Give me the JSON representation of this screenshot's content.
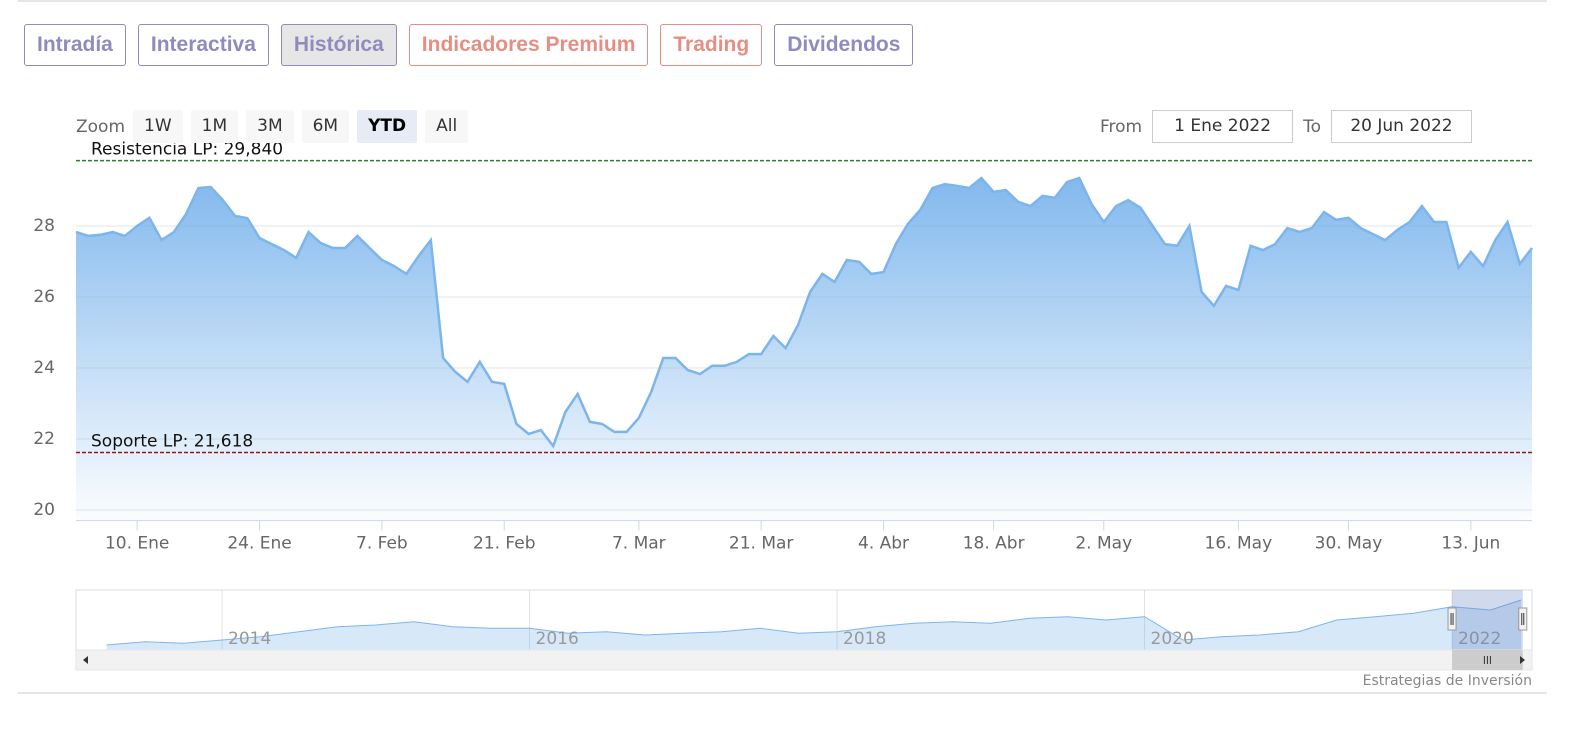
{
  "tabs": [
    {
      "label": "Intradía",
      "color": "#8f8bbd"
    },
    {
      "label": "Interactiva",
      "color": "#8f8bbd"
    },
    {
      "label": "Histórica",
      "color": "#8f8bbd",
      "active": true
    },
    {
      "label": "Indicadores Premium",
      "color": "#e58f84"
    },
    {
      "label": "Trading",
      "color": "#e58f84"
    },
    {
      "label": "Dividendos",
      "color": "#8f8bbd"
    }
  ],
  "zoom": {
    "label": "Zoom",
    "buttons": [
      "1W",
      "1M",
      "3M",
      "6M",
      "YTD",
      "All"
    ],
    "selected": "YTD"
  },
  "range": {
    "from_label": "From",
    "from": "1 Ene 2022",
    "to_label": "To",
    "to": "20 Jun 2022"
  },
  "credit": "Estrategias de Inversión",
  "chart_data": [
    {
      "type": "area",
      "color": "#7cb5ec",
      "grid": true,
      "categories": [
        null,
        null,
        null,
        null,
        null,
        "10. Ene",
        null,
        null,
        null,
        null,
        null,
        null,
        null,
        null,
        null,
        "24. Ene",
        null,
        null,
        null,
        null,
        null,
        null,
        null,
        null,
        null,
        "7. Feb",
        null,
        null,
        null,
        null,
        null,
        null,
        null,
        null,
        null,
        "21. Feb",
        null,
        null,
        null,
        null,
        null,
        null,
        null,
        null,
        null,
        null,
        "7. Mar",
        null,
        null,
        null,
        null,
        null,
        null,
        null,
        null,
        null,
        "21. Mar",
        null,
        null,
        null,
        null,
        null,
        null,
        null,
        null,
        null,
        "4. Abr",
        null,
        null,
        null,
        null,
        null,
        null,
        null,
        null,
        "18. Abr",
        null,
        null,
        null,
        null,
        null,
        null,
        null,
        null,
        "2. May",
        null,
        null,
        null,
        null,
        null,
        null,
        null,
        null,
        null,
        null,
        "16. May",
        null,
        null,
        null,
        null,
        null,
        null,
        null,
        null,
        "30. May",
        null,
        null,
        null,
        null,
        null,
        null,
        null,
        null,
        null,
        "13. Jun",
        null,
        null,
        null,
        null,
        null
      ],
      "values": [
        27.83,
        27.72,
        27.75,
        27.83,
        27.72,
        28.0,
        28.23,
        27.6,
        27.83,
        28.34,
        29.07,
        29.1,
        28.73,
        28.28,
        28.22,
        27.66,
        27.49,
        27.32,
        27.1,
        27.83,
        27.52,
        27.38,
        27.38,
        27.72,
        27.38,
        27.04,
        26.87,
        26.65,
        27.15,
        27.6,
        24.28,
        23.89,
        23.61,
        24.17,
        23.61,
        23.55,
        22.42,
        22.14,
        22.25,
        21.8,
        22.76,
        23.27,
        22.48,
        22.42,
        22.2,
        22.2,
        22.59,
        23.32,
        24.28,
        24.28,
        23.94,
        23.83,
        24.06,
        24.06,
        24.17,
        24.39,
        24.39,
        24.9,
        24.56,
        25.2,
        26.14,
        26.65,
        26.42,
        27.04,
        26.99,
        26.65,
        26.7,
        27.49,
        28.06,
        28.45,
        29.07,
        29.18,
        29.13,
        29.07,
        29.35,
        28.96,
        29.01,
        28.68,
        28.56,
        28.85,
        28.79,
        29.24,
        29.35,
        28.62,
        28.11,
        28.56,
        28.73,
        28.51,
        28.0,
        27.49,
        27.44,
        28.0,
        26.14,
        25.75,
        26.31,
        26.2,
        27.44,
        27.32,
        27.49,
        27.94,
        27.83,
        27.94,
        28.39,
        28.17,
        28.23,
        27.94,
        27.77,
        27.6,
        27.89,
        28.11,
        28.56,
        28.11,
        28.11,
        26.82,
        27.27,
        26.87,
        27.6,
        28.11,
        26.93,
        27.38
      ],
      "ylim": [
        19.7,
        29.9
      ],
      "yticks": [
        20,
        22,
        24,
        26,
        28
      ],
      "plot_lines": [
        {
          "label": "Resistencia LP: 29,840",
          "value": 29.84,
          "color": "#2e7d32"
        },
        {
          "label": "Soporte LP: 21,618",
          "value": 21.618,
          "color": "#8b1a1a"
        }
      ]
    },
    {
      "type": "navigator",
      "color": "#7cb5ec",
      "x": [
        2013.25,
        2013.5,
        2013.75,
        2014,
        2014.25,
        2014.5,
        2014.75,
        2015,
        2015.25,
        2015.5,
        2015.75,
        2016,
        2016.25,
        2016.5,
        2016.75,
        2017,
        2017.25,
        2017.5,
        2017.75,
        2018,
        2018.25,
        2018.5,
        2018.75,
        2019,
        2019.25,
        2019.5,
        2019.75,
        2020,
        2020.25,
        2020.5,
        2020.75,
        2021,
        2021.25,
        2021.5,
        2021.75,
        2022,
        2022.25,
        2022.45
      ],
      "values": [
        13.5,
        14.5,
        14,
        15,
        16,
        17.5,
        19,
        19.5,
        20.5,
        19,
        18.5,
        18.5,
        17,
        17.5,
        16.5,
        17,
        17.5,
        18.5,
        17,
        17.5,
        19,
        20,
        20.5,
        20,
        21.5,
        22,
        21,
        22,
        15,
        16,
        16.5,
        17.5,
        21,
        22,
        23,
        25,
        24,
        27
      ],
      "xlim": [
        2013.05,
        2022.52
      ],
      "xticks": [
        2014,
        2016,
        2018,
        2020,
        2022
      ],
      "ylim": [
        12,
        30
      ],
      "selected": [
        2022,
        2022.46
      ]
    }
  ]
}
